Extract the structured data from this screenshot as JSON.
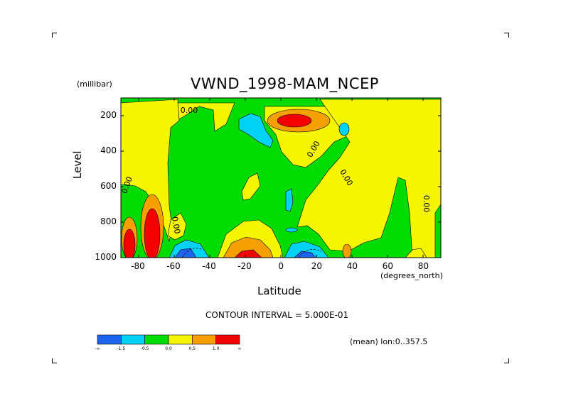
{
  "chart_data": {
    "type": "heatmap",
    "title": "VWND_1998-MAM_NCEP",
    "ylabel": "Level",
    "yunits": "(millibar)",
    "xlabel": "Latitude",
    "xunits": "(degrees_north)",
    "contour_note": "CONTOUR INTERVAL = 5.000E-01",
    "mean_note": "(mean) lon:0..357.5",
    "contour_labels": [
      "0.00",
      "0.00",
      "0.00",
      "0.00",
      "0.00",
      "0.00"
    ],
    "xlim": [
      -90,
      90
    ],
    "ylim": [
      1000,
      100
    ],
    "xticks": [
      "-80",
      "-60",
      "-40",
      "-20",
      "0",
      "20",
      "40",
      "60",
      "80"
    ],
    "yticks": [
      "200",
      "400",
      "600",
      "800",
      "1000"
    ],
    "colorbar": {
      "colors": [
        "#1e64f0",
        "#00d2f5",
        "#00dc00",
        "#f5f500",
        "#f5a000",
        "#f50000"
      ],
      "labels": [
        "-∞",
        "-1.5",
        "-0.5",
        "0.0",
        "0.5",
        "1.0",
        "∞"
      ]
    }
  }
}
